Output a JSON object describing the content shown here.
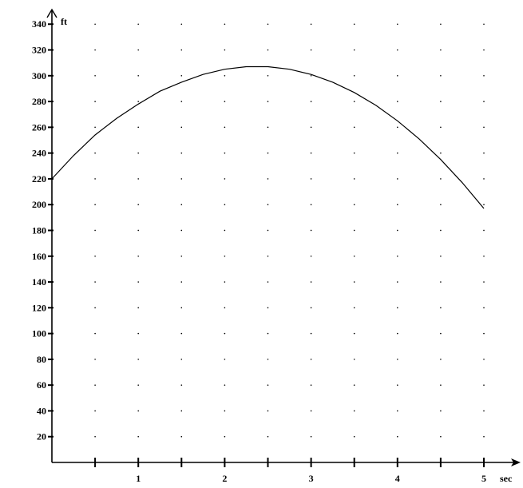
{
  "chart_data": {
    "type": "line",
    "title": "",
    "xlabel": "sec",
    "ylabel": "ft",
    "xlim": [
      0,
      5.3
    ],
    "ylim": [
      0,
      350
    ],
    "grid": "dotted",
    "x_tick_labels": [
      "1",
      "2",
      "3",
      "4",
      "5"
    ],
    "x_ticks": [
      0.5,
      1,
      1.5,
      2,
      2.5,
      3,
      3.5,
      4,
      4.5,
      5
    ],
    "y_tick_labels": [
      "20",
      "40",
      "60",
      "80",
      "100",
      "120",
      "140",
      "160",
      "180",
      "200",
      "220",
      "240",
      "260",
      "280",
      "300",
      "320",
      "340"
    ],
    "series": [
      {
        "x": [
          0,
          0.25,
          0.5,
          0.75,
          1,
          1.25,
          1.5,
          1.75,
          2,
          2.25,
          2.5,
          2.75,
          3,
          3.25,
          3.5,
          3.75,
          4,
          4.25,
          4.5,
          4.75,
          5
        ],
        "y": [
          220,
          238,
          254,
          267,
          278,
          288,
          295,
          301,
          305,
          307,
          307,
          305,
          301,
          295,
          287,
          277,
          265,
          251,
          235,
          217,
          197
        ]
      }
    ]
  }
}
